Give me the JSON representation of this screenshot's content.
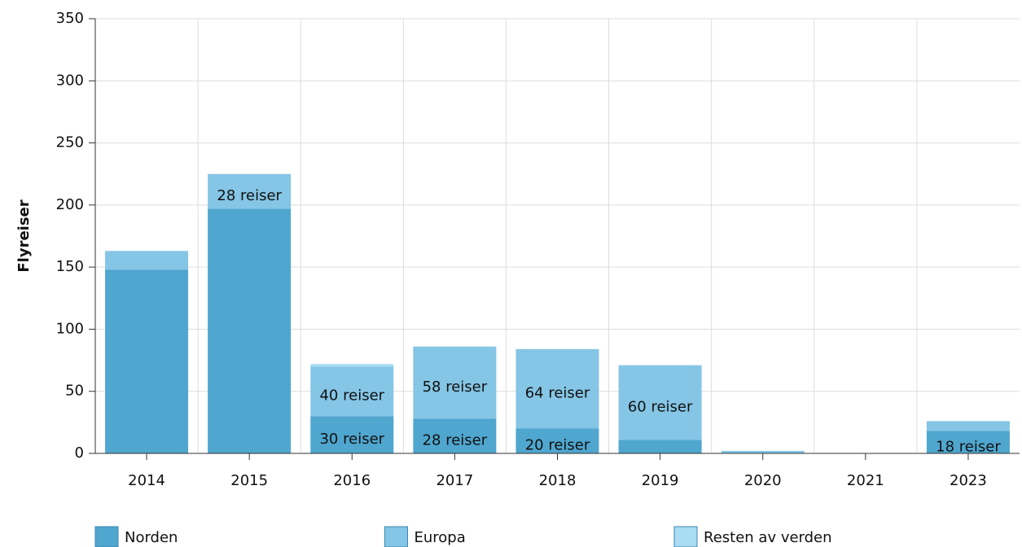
{
  "chart_data": {
    "type": "bar",
    "stacked": true,
    "ylabel": "Flyreiser",
    "categories": [
      "2014",
      "2015",
      "2016",
      "2017",
      "2018",
      "2019",
      "2020",
      "2021",
      "2023"
    ],
    "series": [
      {
        "name": "Norden",
        "color": "#4fa6cf",
        "values": [
          148,
          197,
          30,
          28,
          20,
          11,
          0,
          0,
          18
        ],
        "value_labels": [
          null,
          null,
          "30 reiser",
          "28 reiser",
          "20 reiser",
          null,
          null,
          null,
          "18 reiser"
        ]
      },
      {
        "name": "Europa",
        "color": "#85c5e5",
        "values": [
          15,
          28,
          40,
          58,
          64,
          60,
          2,
          0,
          8
        ],
        "value_labels": [
          null,
          "28 reiser",
          "40 reiser",
          "58 reiser",
          "64 reiser",
          "60 reiser",
          null,
          null,
          null
        ]
      },
      {
        "name": "Resten av verden",
        "color": "#aadcf3",
        "values": [
          0,
          0,
          2,
          0,
          0,
          0,
          0,
          0,
          0
        ]
      }
    ],
    "ylim": [
      0,
      350
    ],
    "yticks": [
      0,
      50,
      100,
      150,
      200,
      250,
      300,
      350
    ],
    "grid": true
  }
}
